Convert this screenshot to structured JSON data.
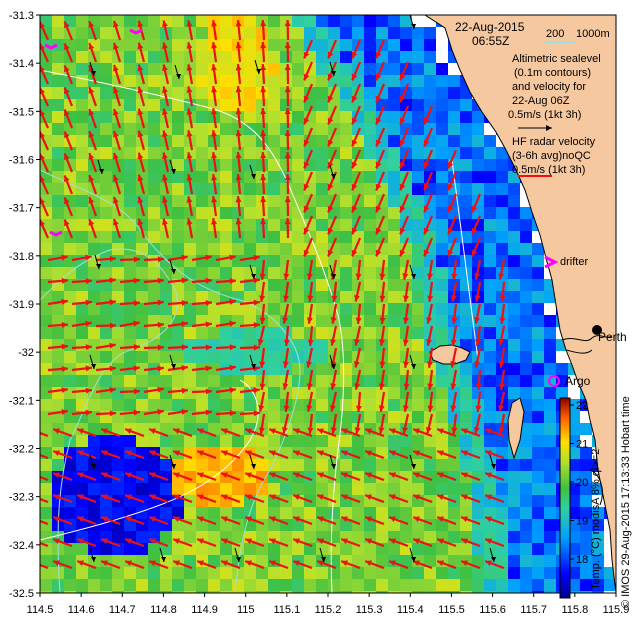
{
  "header": {
    "date": "22-Aug-2015",
    "time": "06:55Z"
  },
  "bathy_legend": {
    "a": "200",
    "b": "1000m"
  },
  "altimetry": {
    "l1": "Altimetric sealevel",
    "l2": "(0.1m contours)",
    "l3": "and velocity for",
    "l4": "22-Aug 06Z",
    "l5": "0.5m/s (1kt 3h)"
  },
  "hf": {
    "l1": "HF radar velocity",
    "l2": "(3-6h avg)noQC",
    "l3": "0.5m/s (1kt 3h)"
  },
  "drifter_label": "drifter",
  "perth_label": "Perth",
  "argo_label": "Argo",
  "colorbar": {
    "ticks": [
      "22",
      "21",
      "20",
      "19",
      "18"
    ],
    "label": "Temp. (°C) modisA 8% ql>=2"
  },
  "credit": "© IMOS 29-Aug-2015 17:13:33 Hobart time",
  "axes": {
    "x_ticks": [
      "114.5",
      "114.6",
      "114.7",
      "114.8",
      "114.9",
      "115",
      "115.1",
      "115.2",
      "115.3",
      "115.4",
      "115.5",
      "115.6",
      "115.7",
      "115.8",
      "115.9"
    ],
    "y_ticks": [
      "-31.3",
      "-31.4",
      "-31.5",
      "-31.6",
      "-31.7",
      "-31.8",
      "-31.9",
      "-32",
      "-32.1",
      "-32.2",
      "-32.3",
      "-32.4",
      "-32.5"
    ]
  },
  "colors": {
    "land": "#f6c89f",
    "hf_arrow": "#ee1111",
    "alt_arrow": "#000000",
    "drifter": "#ff00ff",
    "bathy": "#9fe0e0"
  }
}
